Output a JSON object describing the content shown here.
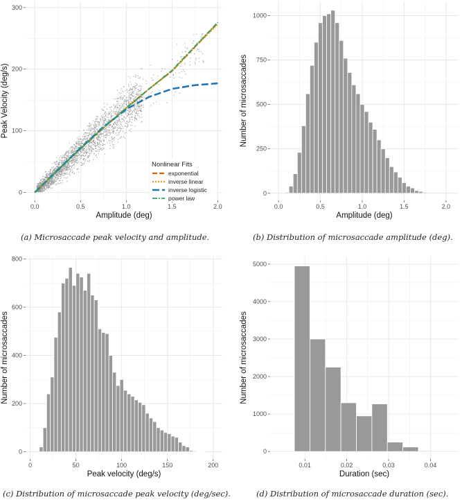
{
  "captions": {
    "a": "(a) Microsaccade peak velocity and amplitude.",
    "b": "(b) Distribution of microsaccade amplitude (deg).",
    "c": "(c) Distribution of microsaccade peak velocity (deg/sec).",
    "d": "(d) Distribution of microsaccade duration (sec)."
  },
  "colors": {
    "bar": "#999999",
    "scatter": "#9a9a9a",
    "exponential": "#d95f02",
    "inverse_linear": "#e6a020",
    "inverse_logistic": "#1f78b4",
    "power_law": "#2ca25f",
    "grid": "#e6e6e6"
  },
  "chart_data": [
    {
      "id": "a",
      "type": "scatter",
      "xlabel": "Amplitude (deg)",
      "ylabel": "Peak Velocity (deg/s)",
      "xlim": [
        -0.1,
        2.05
      ],
      "ylim": [
        -13,
        310
      ],
      "xticks": [
        0.0,
        0.5,
        1.0,
        1.5,
        2.0
      ],
      "xtick_labels": [
        "0.0",
        "0.5",
        "1.0",
        "1.5",
        "2.0"
      ],
      "yticks": [
        0,
        100,
        200,
        300
      ],
      "ytick_labels": [
        "0",
        "100",
        "200",
        "300"
      ],
      "legend": {
        "title": "Nonlinear Fits",
        "position": "bottom-right",
        "entries": [
          "exponential",
          "inverse linear",
          "inverse logistic",
          "power law"
        ]
      },
      "scatter_cloud": {
        "description_points": [
          [
            0.0,
            0
          ],
          [
            0.1,
            15
          ],
          [
            0.25,
            35
          ],
          [
            0.4,
            55
          ],
          [
            0.5,
            70
          ],
          [
            0.6,
            85
          ],
          [
            0.75,
            105
          ],
          [
            0.9,
            125
          ],
          [
            1.0,
            140
          ],
          [
            1.1,
            150
          ],
          [
            1.3,
            160
          ]
        ],
        "spread": "wide vertical scatter around the fit lines, thinning above amplitude 1.1"
      },
      "series": [
        {
          "name": "exponential",
          "x": [
            0,
            0.25,
            0.5,
            0.75,
            1.0,
            1.25,
            1.5,
            1.75,
            2.0
          ],
          "y": [
            0,
            36,
            71,
            105,
            137,
            168,
            197,
            236,
            275
          ]
        },
        {
          "name": "inverse linear",
          "x": [
            0,
            0.25,
            0.5,
            0.75,
            1.0,
            1.25,
            1.5,
            1.75,
            2.0
          ],
          "y": [
            0,
            36,
            71,
            105,
            137,
            168,
            197,
            236,
            273
          ]
        },
        {
          "name": "inverse logistic",
          "x": [
            0,
            0.25,
            0.5,
            0.75,
            1.0,
            1.25,
            1.5,
            1.75,
            2.0
          ],
          "y": [
            0,
            36,
            72,
            106,
            135,
            155,
            168,
            174,
            177
          ]
        },
        {
          "name": "power law",
          "x": [
            0,
            0.25,
            0.5,
            0.75,
            1.0,
            1.25,
            1.5,
            1.75,
            2.0
          ],
          "y": [
            0,
            36,
            71,
            105,
            137,
            168,
            198,
            237,
            276
          ]
        }
      ]
    },
    {
      "id": "b",
      "type": "bar",
      "xlabel": "Amplitude (deg)",
      "ylabel": "Number of microsaccades",
      "xlim": [
        -0.1,
        2.15
      ],
      "ylim": [
        -40,
        1080
      ],
      "xticks": [
        0.0,
        0.5,
        1.0,
        1.5,
        2.0
      ],
      "xtick_labels": [
        "0.0",
        "0.5",
        "1.0",
        "1.5",
        "2.0"
      ],
      "yticks": [
        0,
        250,
        500,
        750,
        1000
      ],
      "ytick_labels": [
        "0",
        "250",
        "500",
        "750",
        "1000"
      ],
      "bin_start": 0.075,
      "bin_width": 0.05,
      "values": [
        5,
        40,
        110,
        230,
        380,
        560,
        720,
        850,
        960,
        1000,
        1010,
        1030,
        960,
        860,
        760,
        680,
        610,
        560,
        500,
        460,
        400,
        360,
        300,
        250,
        200,
        150,
        120,
        90,
        60,
        40,
        30,
        15,
        10,
        5
      ]
    },
    {
      "id": "c",
      "type": "bar",
      "xlabel": "Peak velocity (deg/s)",
      "ylabel": "Number of microsaccades",
      "xlim": [
        -5,
        210
      ],
      "ylim": [
        -30,
        810
      ],
      "xticks": [
        0,
        50,
        100,
        150,
        200
      ],
      "xtick_labels": [
        "0",
        "50",
        "100",
        "150",
        "200"
      ],
      "yticks": [
        0,
        200,
        400,
        600,
        800
      ],
      "ytick_labels": [
        "0",
        "200",
        "400",
        "600",
        "800"
      ],
      "bin_start": 10,
      "bin_width": 4,
      "values": [
        20,
        100,
        240,
        310,
        475,
        580,
        700,
        720,
        765,
        690,
        740,
        725,
        670,
        740,
        650,
        630,
        510,
        495,
        490,
        400,
        330,
        275,
        300,
        255,
        240,
        230,
        215,
        205,
        195,
        160,
        140,
        125,
        100,
        90,
        80,
        75,
        65,
        60,
        40,
        25,
        20,
        5,
        3,
        1,
        1
      ]
    },
    {
      "id": "d",
      "type": "bar",
      "xlabel": "Duration (sec)",
      "ylabel": "Number of microsaccades",
      "xlim": [
        0.0017,
        0.0467
      ],
      "ylim": [
        -200,
        5200
      ],
      "xticks": [
        0.01,
        0.02,
        0.03,
        0.04
      ],
      "xtick_labels": [
        "0.01",
        "0.02",
        "0.03",
        "0.04"
      ],
      "yticks": [
        0,
        1000,
        2000,
        3000,
        4000,
        5000
      ],
      "ytick_labels": [
        "0",
        "1000",
        "2000",
        "3000",
        "4000",
        "5000"
      ],
      "bin_start": 0.0075,
      "bin_width": 0.0037,
      "values": [
        4950,
        3000,
        2250,
        1300,
        950,
        1270,
        250,
        120,
        20
      ]
    }
  ]
}
